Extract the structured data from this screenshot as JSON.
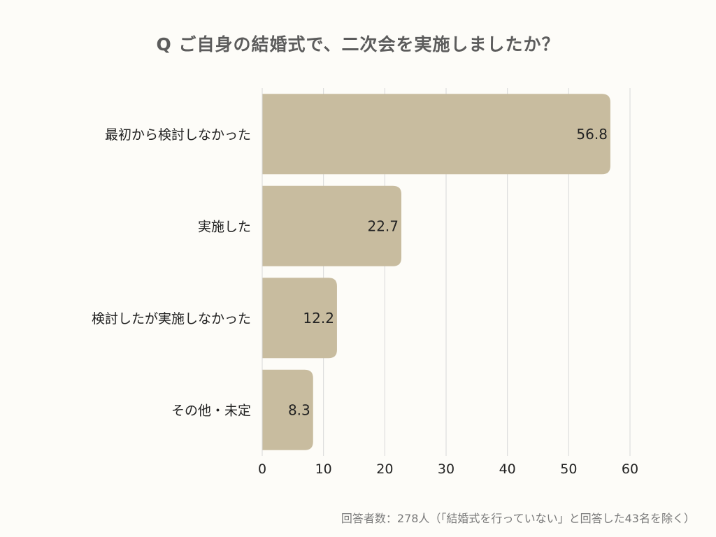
{
  "chart_data": {
    "type": "bar",
    "orientation": "horizontal",
    "title": "Q ご自身の結婚式で、二次会を実施しましたか？",
    "categories": [
      "最初から検討しなかった",
      "実施した",
      "検討したが実施しなかった",
      "その他・未定"
    ],
    "values": [
      56.8,
      22.7,
      12.2,
      8.3
    ],
    "value_labels": [
      "56.8",
      "22.7",
      "12.2",
      "8.3"
    ],
    "xlim": [
      0,
      60
    ],
    "xticks": [
      0,
      10,
      20,
      30,
      40,
      50,
      60
    ],
    "grid": true,
    "bar_color": "#c8bc9f",
    "grid_color": "#d8d8d8",
    "text_color": "#222222"
  },
  "footnote": "回答者数：278人（「結婚式を行っていない」と回答した43名を除く）"
}
